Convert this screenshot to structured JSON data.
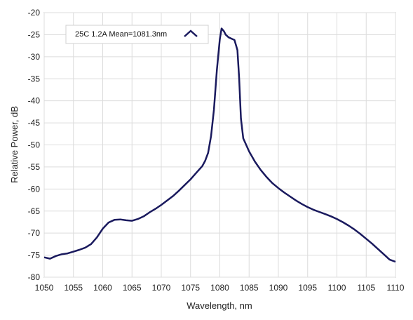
{
  "chart_data": {
    "type": "line",
    "xlabel": "Wavelength, nm",
    "ylabel": "Relative Power, dB",
    "xlim": [
      1050,
      1110
    ],
    "ylim": [
      -80,
      -20
    ],
    "x_ticks": [
      1050,
      1055,
      1060,
      1065,
      1070,
      1075,
      1080,
      1085,
      1090,
      1095,
      1100,
      1105,
      1110
    ],
    "y_ticks": [
      -20,
      -25,
      -30,
      -35,
      -40,
      -45,
      -50,
      -55,
      -60,
      -65,
      -70,
      -75,
      -80
    ],
    "x_tick_labels": [
      "1050",
      "1055",
      "1060",
      "1065",
      "1070",
      "1075",
      "1080",
      "1085",
      "1090",
      "1095",
      "1100",
      "1105",
      "1110"
    ],
    "y_tick_labels": [
      "-20",
      "-25",
      "-30",
      "-35",
      "-40",
      "-45",
      "-50",
      "-55",
      "-60",
      "-65",
      "-70",
      "-75",
      "-80"
    ],
    "grid": true,
    "legend_position": "top-left",
    "line_color": "#1a1a5e",
    "series": [
      {
        "name": "25C 1.2A  Mean=1081.3nm",
        "x": [
          1050,
          1051,
          1052,
          1053,
          1054,
          1055,
          1056,
          1057,
          1058,
          1059,
          1060,
          1061,
          1062,
          1063,
          1064,
          1065,
          1066,
          1067,
          1068,
          1069,
          1070,
          1071,
          1072,
          1073,
          1074,
          1075,
          1076,
          1077,
          1077.5,
          1078,
          1078.5,
          1079,
          1079.5,
          1080,
          1080.3,
          1080.7,
          1081,
          1081.5,
          1082,
          1082.5,
          1083,
          1083.3,
          1083.6,
          1084,
          1085,
          1086,
          1087,
          1088,
          1089,
          1090,
          1091,
          1092,
          1093,
          1094,
          1095,
          1096,
          1097,
          1098,
          1099,
          1100,
          1101,
          1102,
          1103,
          1104,
          1105,
          1106,
          1107,
          1108,
          1109,
          1110
        ],
        "y": [
          -75.5,
          -75.8,
          -75.2,
          -74.8,
          -74.6,
          -74.2,
          -73.8,
          -73.3,
          -72.5,
          -71.0,
          -69.0,
          -67.6,
          -67.0,
          -66.9,
          -67.1,
          -67.2,
          -66.8,
          -66.2,
          -65.3,
          -64.5,
          -63.6,
          -62.6,
          -61.6,
          -60.4,
          -59.1,
          -57.8,
          -56.3,
          -54.8,
          -53.6,
          -51.8,
          -48.0,
          -42.0,
          -33.0,
          -26.0,
          -23.6,
          -24.2,
          -25.0,
          -25.6,
          -25.9,
          -26.2,
          -28.5,
          -35.0,
          -44.0,
          -48.5,
          -51.5,
          -53.8,
          -55.7,
          -57.3,
          -58.7,
          -59.8,
          -60.8,
          -61.7,
          -62.6,
          -63.4,
          -64.1,
          -64.7,
          -65.2,
          -65.7,
          -66.2,
          -66.8,
          -67.5,
          -68.3,
          -69.2,
          -70.2,
          -71.3,
          -72.4,
          -73.6,
          -74.8,
          -76.0,
          -76.5
        ]
      }
    ]
  }
}
